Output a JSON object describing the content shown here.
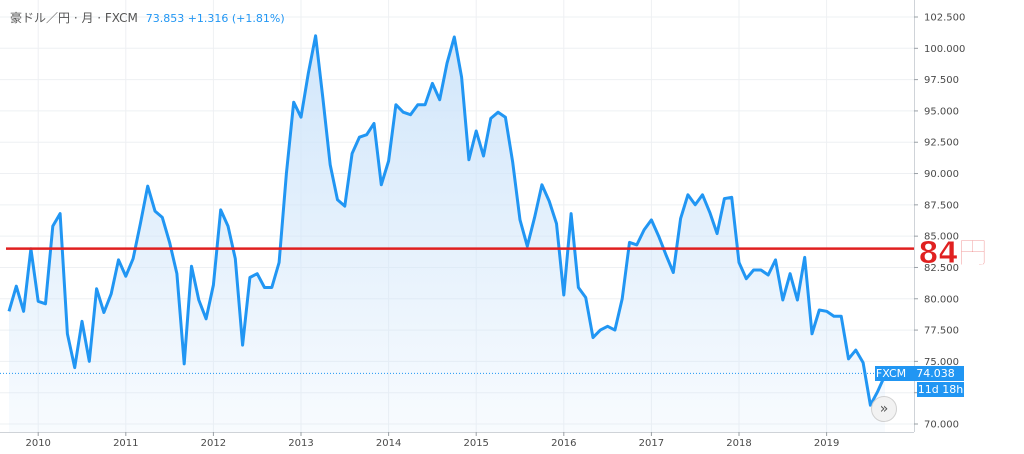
{
  "legend": {
    "symbol": "豪ドル／円 · 月 · FXCM",
    "values": "73.853  +1.316 (+1.81%)"
  },
  "annotation": {
    "text": "84円",
    "level": 84,
    "color": "#e02020"
  },
  "price_tag": {
    "source": "FXCM",
    "price": "74.038",
    "countdown": "11d 18h",
    "level": 74.038
  },
  "colors": {
    "line": "#2196f3",
    "area": "#cfe5fa",
    "hline": "#e02020",
    "grid": "#eef0f3"
  },
  "icons": {
    "scroll": "double-chevron-right-icon"
  },
  "chart_data": {
    "type": "area",
    "title": "",
    "xlabel": "",
    "ylabel": "",
    "ylim": [
      70,
      102.5
    ],
    "y_ticks": [
      "70.000",
      "72.500",
      "75.000",
      "77.500",
      "80.000",
      "82.500",
      "85.000",
      "87.500",
      "90.000",
      "92.500",
      "95.000",
      "97.500",
      "100.000",
      "102.500"
    ],
    "x_ticks": [
      "2010",
      "2011",
      "2012",
      "2013",
      "2014",
      "2015",
      "2016",
      "2017",
      "2018",
      "2019"
    ],
    "x_start": "2009-09",
    "grid": true,
    "series": [
      {
        "values": [
          79.0,
          81.0,
          79.0,
          84.0,
          79.8,
          79.6,
          85.8,
          86.8,
          77.2,
          74.5,
          78.2,
          75.0,
          80.8,
          78.9,
          80.4,
          83.1,
          81.8,
          83.2,
          86.0,
          89.0,
          87.0,
          86.5,
          84.5,
          82.0,
          74.8,
          82.6,
          79.9,
          78.4,
          81.1,
          87.1,
          85.8,
          83.2,
          76.3,
          81.7,
          82.0,
          80.9,
          80.9,
          82.9,
          90.0,
          95.7,
          94.5,
          98.0,
          101.0,
          96.0,
          90.7,
          87.9,
          87.4,
          91.6,
          92.9,
          93.1,
          94.0,
          89.1,
          91.0,
          95.5,
          94.9,
          94.7,
          95.5,
          95.5,
          97.2,
          95.9,
          98.8,
          100.9,
          97.7,
          91.1,
          93.4,
          91.4,
          94.4,
          94.9,
          94.5,
          90.9,
          86.3,
          84.2,
          86.5,
          89.1,
          87.8,
          86.0,
          80.3,
          86.8,
          80.9,
          80.1,
          76.9,
          77.5,
          77.8,
          77.5,
          80.0,
          84.5,
          84.3,
          85.5,
          86.3,
          85.0,
          83.5,
          82.1,
          86.4,
          88.3,
          87.5,
          88.3,
          86.9,
          85.2,
          88.0,
          88.1,
          82.9,
          81.6,
          82.3,
          82.3,
          81.9,
          83.1,
          79.9,
          82.0,
          79.9,
          83.3,
          77.2,
          79.1,
          79.0,
          78.6,
          78.6,
          75.2,
          75.9,
          74.9,
          71.5,
          72.6,
          73.9
        ]
      }
    ]
  }
}
